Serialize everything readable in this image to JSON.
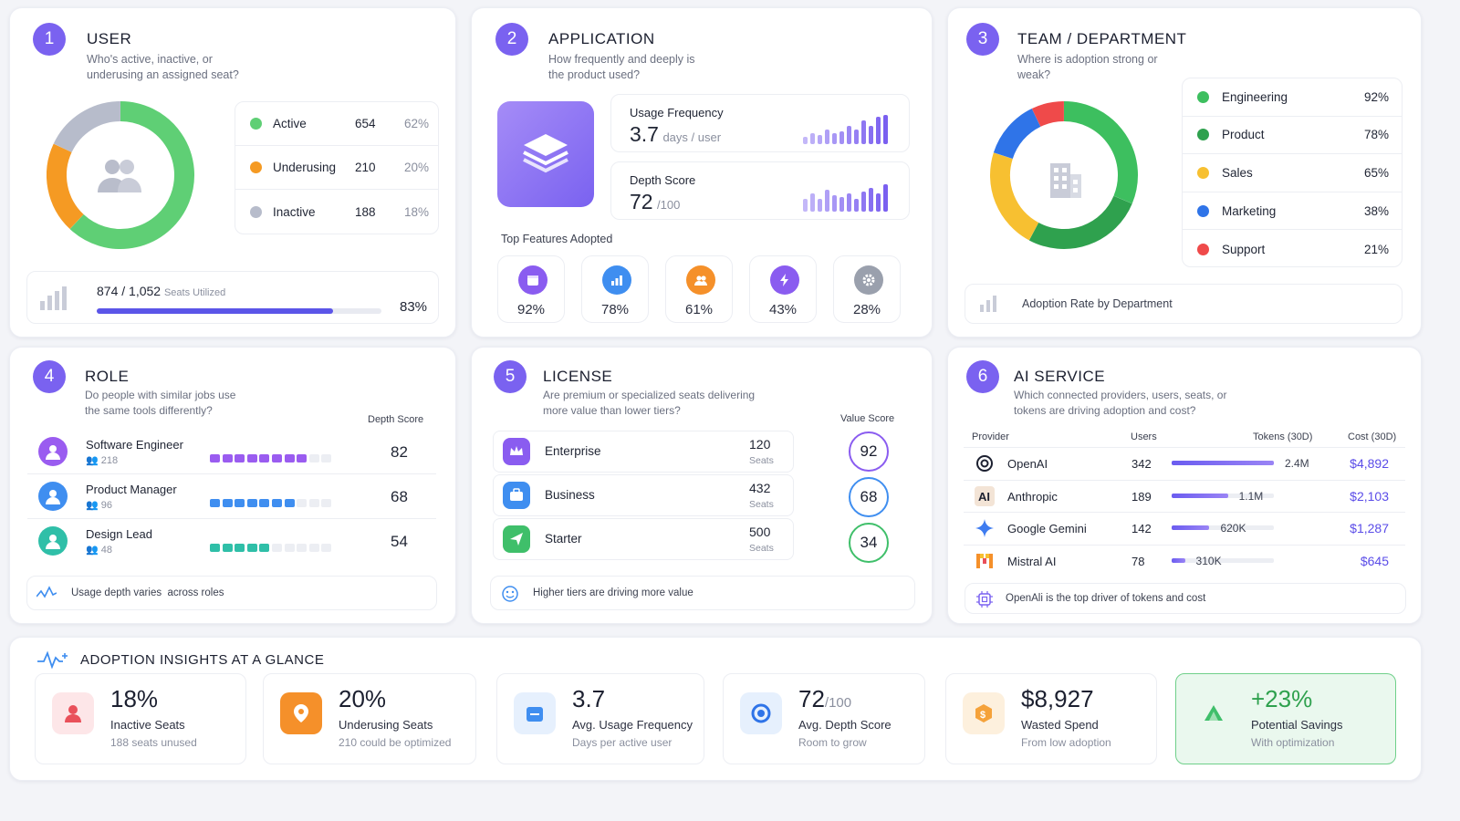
{
  "user": {
    "num": "1",
    "title": "USER",
    "subtitle": "Who's active, inactive, or underusing an assigned seat?",
    "segments": [
      {
        "label": "Active",
        "count": "654",
        "pct": "62%",
        "color": "#5fcf75",
        "value": 62
      },
      {
        "label": "Underusing",
        "count": "210",
        "pct": "20%",
        "color": "#f59a23",
        "value": 20
      },
      {
        "label": "Inactive",
        "count": "188",
        "pct": "18%",
        "color": "#b7bccb",
        "value": 18
      }
    ],
    "seats": "874 / 1,052",
    "seats_label": "Seats Utilized",
    "seats_pct": "83%",
    "seats_fraction": 0.83
  },
  "application": {
    "num": "2",
    "title": "APPLICATION",
    "subtitle": "How frequently and deeply is the product used?",
    "freq_label": "Usage Frequency",
    "freq_value": "3.7",
    "freq_unit": "days / user",
    "depth_label": "Depth Score",
    "depth_value": "72",
    "depth_unit": "/100",
    "features_label": "Top Features Adopted",
    "features": [
      {
        "icon": "calendar-icon",
        "value": "92%",
        "color": "#8a5cf0"
      },
      {
        "icon": "chart-icon",
        "value": "78%",
        "color": "#3f8ef0"
      },
      {
        "icon": "users-icon",
        "value": "61%",
        "color": "#f5902a"
      },
      {
        "icon": "bolt-icon",
        "value": "43%",
        "color": "#8a5cf0"
      },
      {
        "icon": "gear-icon",
        "value": "28%",
        "color": "#9aa0ad"
      }
    ]
  },
  "team": {
    "num": "3",
    "title": "TEAM / DEPARTMENT",
    "subtitle": "Where is adoption strong or weak?",
    "departments": [
      {
        "label": "Engineering",
        "pct": "92%",
        "color": "#3dbf5f",
        "value": 92
      },
      {
        "label": "Product",
        "pct": "78%",
        "color": "#2fa14e",
        "value": 78
      },
      {
        "label": "Sales",
        "pct": "65%",
        "color": "#f7c031",
        "value": 65
      },
      {
        "label": "Marketing",
        "pct": "38%",
        "color": "#2f74e8",
        "value": 38
      },
      {
        "label": "Support",
        "pct": "21%",
        "color": "#ef4a4a",
        "value": 21
      }
    ],
    "footer": "Adoption Rate by Department"
  },
  "role": {
    "num": "4",
    "title": "ROLE",
    "subtitle": "Do people with similar jobs use the same tools differently?",
    "col_label": "Depth Score",
    "rows": [
      {
        "name": "Software Engineer",
        "count": "218",
        "score": "82",
        "color": "#9a5cf0",
        "avatar": "#9a5cf0",
        "blocks": 8,
        "fraction": 0.82
      },
      {
        "name": "Product Manager",
        "count": "96",
        "score": "68",
        "color": "#3f8ef0",
        "avatar": "#3f8ef0",
        "blocks": 7,
        "fraction": 0.68
      },
      {
        "name": "Design Lead",
        "count": "48",
        "score": "54",
        "color": "#2fbfa8",
        "avatar": "#2fbfa8",
        "blocks": 5,
        "fraction": 0.54
      }
    ],
    "footer": "Usage depth varies  across roles"
  },
  "license": {
    "num": "5",
    "title": "LICENSE",
    "subtitle": "Are premium or specialized seats delivering more value than lower tiers?",
    "col_label": "Value Score",
    "rows": [
      {
        "name": "Enterprise",
        "seats": "120",
        "seats_label": "Seats",
        "score": "92",
        "color": "#8a5cf0",
        "ring": "#8a5cf0",
        "icon": "crown-icon"
      },
      {
        "name": "Business",
        "seats": "432",
        "seats_label": "Seats",
        "score": "68",
        "color": "#3f8ef0",
        "ring": "#3f8ef0",
        "icon": "briefcase-icon"
      },
      {
        "name": "Starter",
        "seats": "500",
        "seats_label": "Seats",
        "score": "34",
        "color": "#3fbf6a",
        "ring": "#3fbf6a",
        "icon": "send-icon"
      }
    ],
    "footer": "Higher tiers are driving more value"
  },
  "ai": {
    "num": "6",
    "title": "AI SERVICE",
    "subtitle": "Which connected providers, users, seats, or tokens are driving adoption and cost?",
    "headers": {
      "provider": "Provider",
      "users": "Users",
      "tokens": "Tokens (30D)",
      "cost": "Cost (30D)"
    },
    "rows": [
      {
        "name": "OpenAI",
        "users": "342",
        "tokens": "2.4M",
        "cost": "$4,892",
        "fraction": 1.0,
        "icon": "openai-icon"
      },
      {
        "name": "Anthropic",
        "users": "189",
        "tokens": "1.1M",
        "cost": "$2,103",
        "fraction": 0.55,
        "icon": "anthropic-icon"
      },
      {
        "name": "Google Gemini",
        "users": "142",
        "tokens": "620K",
        "cost": "$1,287",
        "fraction": 0.37,
        "icon": "gemini-icon"
      },
      {
        "name": "Mistral AI",
        "users": "78",
        "tokens": "310K",
        "cost": "$645",
        "fraction": 0.13,
        "icon": "mistral-icon"
      }
    ],
    "footer": "OpenAli is the top driver of tokens and cost"
  },
  "insights": {
    "title": "ADOPTION INSIGHTS AT A GLANCE",
    "items": [
      {
        "big": "18%",
        "suffix": "",
        "label": "Inactive Seats",
        "sub": "188 seats unused",
        "color": "#e9505a",
        "bg": "#fde6e8"
      },
      {
        "big": "20%",
        "suffix": "",
        "label": "Underusing Seats",
        "sub": "210 could be optimized",
        "color": "#f5902a",
        "bg": "#f5902a"
      },
      {
        "big": "3.7",
        "suffix": "",
        "label": "Avg. Usage Frequency",
        "sub": "Days per active user",
        "color": "#3f8ef0",
        "bg": "#e6f0fd"
      },
      {
        "big": "72",
        "suffix": "/100",
        "label": "Avg. Depth Score",
        "sub": "Room to grow",
        "color": "#2f74e8",
        "bg": "#e6f0fd"
      },
      {
        "big": "$8,927",
        "suffix": "",
        "label": "Wasted Spend",
        "sub": "From low adoption",
        "color": "#f5a23a",
        "bg": "#fdf0dd"
      },
      {
        "big": "+23%",
        "suffix": "",
        "label": "Potential Savings",
        "sub": "With optimization",
        "color": "#2fa14e",
        "bg": "#eaf8ee"
      }
    ]
  }
}
